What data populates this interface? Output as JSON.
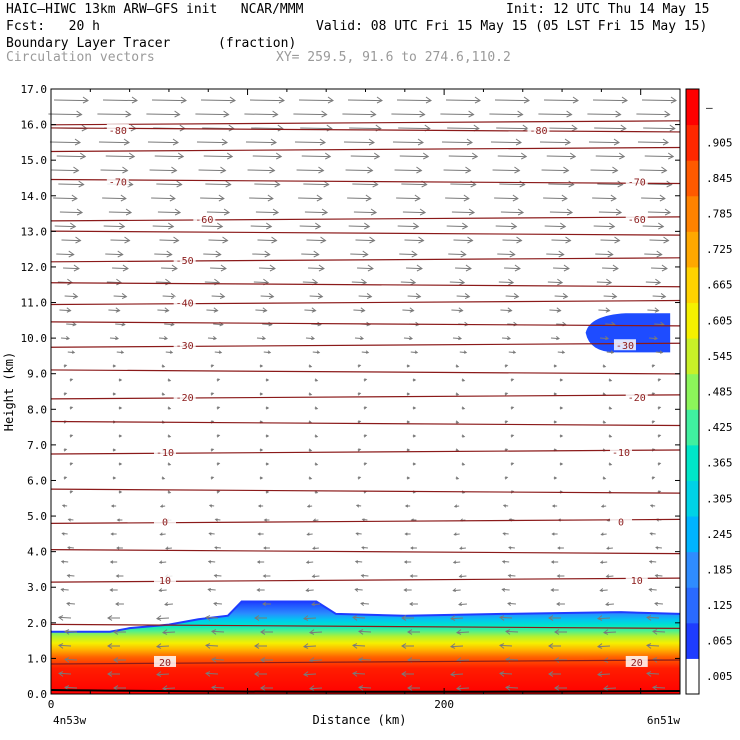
{
  "header": {
    "model": "HAIC–HIWC 13km ARW–GFS init   NCAR/MMM",
    "init": "Init: 12 UTC Thu 14 May 15",
    "fcst": "Fcst:   20 h",
    "valid": "Valid: 08 UTC Fri 15 May 15 (05 LST Fri 15 May 15)",
    "field": "Boundary Layer Tracer",
    "units": "(fraction)",
    "vectors": "Circulation vectors",
    "xy": "XY= 259.5, 91.6 to 274.6,110.2"
  },
  "chart_data": {
    "type": "heatmap",
    "ylabel": "Height (km)",
    "xlabel": "Distance (km)",
    "ylim": [
      0,
      17
    ],
    "yticks": [
      "0.0",
      "1.0",
      "2.0",
      "3.0",
      "4.0",
      "5.0",
      "6.0",
      "7.0",
      "8.0",
      "9.0",
      "10.0",
      "11.0",
      "12.0",
      "13.0",
      "14.0",
      "15.0",
      "16.0",
      "17.0"
    ],
    "xlim": [
      0,
      320
    ],
    "xticks": [
      {
        "x": 0,
        "label": "0"
      },
      {
        "x": 200,
        "label": "200"
      }
    ],
    "x_end_labels": {
      "left": "4n53w",
      "right": "6n51w"
    },
    "tracer_top_km": [
      {
        "x": 0,
        "h": 1.75
      },
      {
        "x": 30,
        "h": 1.75
      },
      {
        "x": 40,
        "h": 1.85
      },
      {
        "x": 60,
        "h": 1.95
      },
      {
        "x": 75,
        "h": 2.1
      },
      {
        "x": 90,
        "h": 2.2
      },
      {
        "x": 97,
        "h": 2.6
      },
      {
        "x": 135,
        "h": 2.6
      },
      {
        "x": 145,
        "h": 2.25
      },
      {
        "x": 180,
        "h": 2.2
      },
      {
        "x": 230,
        "h": 2.25
      },
      {
        "x": 290,
        "h": 2.3
      },
      {
        "x": 320,
        "h": 2.25
      }
    ],
    "tracer_upper_patch_km": {
      "x_start": 272,
      "x_end": 315,
      "bottom": 9.6,
      "top": 10.7
    },
    "temperature_contours_c": [
      {
        "value": -80,
        "label": "-80",
        "labels_at": [
          34,
          248
        ]
      },
      {
        "value": -70,
        "label": "-70",
        "labels_at": [
          34,
          298
        ]
      },
      {
        "value": -60,
        "label": "-60",
        "labels_at": [
          78,
          298
        ]
      },
      {
        "value": -50,
        "label": "-50",
        "labels_at": [
          68
        ]
      },
      {
        "value": -40,
        "label": "-40",
        "labels_at": [
          68
        ]
      },
      {
        "value": -30,
        "label": "-30",
        "labels_at": [
          68,
          292
        ]
      },
      {
        "value": -20,
        "label": "-20",
        "labels_at": [
          68,
          298
        ]
      },
      {
        "value": -10,
        "label": "-10",
        "labels_at": [
          58,
          290
        ]
      },
      {
        "value": 0,
        "label": "0",
        "labels_at": [
          58,
          290
        ]
      },
      {
        "value": 10,
        "label": "10",
        "labels_at": [
          58,
          298
        ]
      },
      {
        "value": 20,
        "label": "20",
        "labels_at": [
          58,
          298
        ]
      }
    ],
    "colorbar": {
      "labels": [
        ".005",
        ".065",
        ".125",
        ".185",
        ".245",
        ".305",
        ".365",
        ".425",
        ".485",
        ".545",
        ".605",
        ".665",
        ".725",
        ".785",
        ".845",
        ".905",
        "–"
      ],
      "colors": [
        "#ffffff",
        "#1e3cff",
        "#2a6aff",
        "#2f8cff",
        "#00b4ff",
        "#00d2e6",
        "#00e6c8",
        "#40f0a0",
        "#8cf55a",
        "#c8f028",
        "#f5f000",
        "#ffd200",
        "#ffa800",
        "#ff8200",
        "#ff5a00",
        "#ff2800",
        "#ff0000"
      ]
    }
  }
}
